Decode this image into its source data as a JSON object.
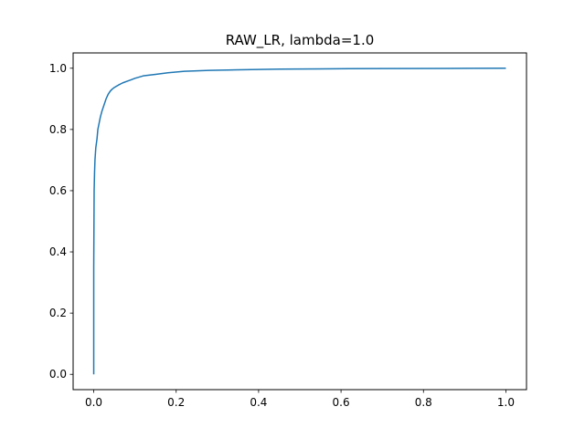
{
  "chart_data": {
    "type": "line",
    "title": "RAW_LR, lambda=1.0",
    "xlabel": "",
    "ylabel": "",
    "xlim": [
      -0.05,
      1.05
    ],
    "ylim": [
      -0.05,
      1.05
    ],
    "grid": false,
    "line_color": "#1f77b4",
    "xticks": [
      {
        "value": 0.0,
        "label": "0.0"
      },
      {
        "value": 0.2,
        "label": "0.2"
      },
      {
        "value": 0.4,
        "label": "0.4"
      },
      {
        "value": 0.6,
        "label": "0.6"
      },
      {
        "value": 0.8,
        "label": "0.8"
      },
      {
        "value": 1.0,
        "label": "1.0"
      }
    ],
    "yticks": [
      {
        "value": 0.0,
        "label": "0.0"
      },
      {
        "value": 0.2,
        "label": "0.2"
      },
      {
        "value": 0.4,
        "label": "0.4"
      },
      {
        "value": 0.6,
        "label": "0.6"
      },
      {
        "value": 0.8,
        "label": "0.8"
      },
      {
        "value": 1.0,
        "label": "1.0"
      }
    ],
    "series": [
      {
        "x": [
          0.0,
          0.0,
          0.001,
          0.002,
          0.003,
          0.005,
          0.008,
          0.01,
          0.013,
          0.016,
          0.02,
          0.025,
          0.03,
          0.035,
          0.04,
          0.045,
          0.05,
          0.06,
          0.07,
          0.08,
          0.09,
          0.1,
          0.12,
          0.15,
          0.18,
          0.22,
          0.28,
          0.35,
          0.45,
          0.55,
          0.7,
          0.85,
          1.0
        ],
        "y": [
          0.0,
          0.35,
          0.6,
          0.66,
          0.7,
          0.74,
          0.77,
          0.8,
          0.82,
          0.84,
          0.86,
          0.88,
          0.9,
          0.915,
          0.925,
          0.932,
          0.937,
          0.945,
          0.952,
          0.957,
          0.962,
          0.967,
          0.975,
          0.98,
          0.985,
          0.99,
          0.993,
          0.995,
          0.997,
          0.998,
          0.999,
          0.9995,
          1.0
        ]
      }
    ]
  }
}
